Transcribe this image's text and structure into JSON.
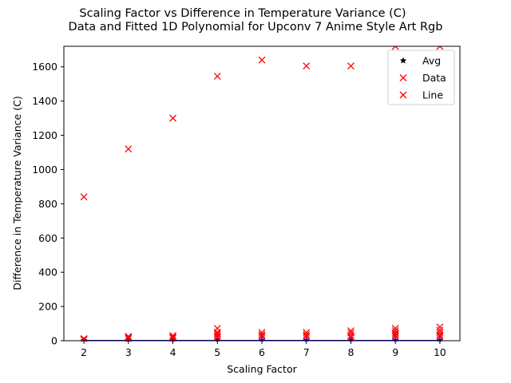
{
  "chart_data": {
    "type": "scatter",
    "title": "Scaling Factor vs Difference in Temperature Variance (C)",
    "subtitle": "Data and Fitted 1D Polynomial for Upconv 7 Anime Style Art Rgb",
    "xlabel": "Scaling Factor",
    "ylabel": "Difference in Temperature Variance (C)",
    "xlim": [
      1.55,
      10.45
    ],
    "ylim": [
      0,
      1720
    ],
    "x_ticks": [
      2,
      3,
      4,
      5,
      6,
      7,
      8,
      9,
      10
    ],
    "y_ticks": [
      0,
      200,
      400,
      600,
      800,
      1000,
      1200,
      1400,
      1600
    ],
    "grid": false,
    "legend_position": "top-right",
    "colors": {
      "data": "#ff0000",
      "avg": "#0000ff",
      "line": "#0000cc",
      "avg_legend": "#000000"
    },
    "legend": [
      {
        "label": "Avg",
        "marker": "star",
        "color": "#000000"
      },
      {
        "label": "Data",
        "marker": "x",
        "color": "#ff0000"
      },
      {
        "label": "Line",
        "marker": "x",
        "color": "#ff0000"
      }
    ],
    "series": [
      {
        "name": "Data",
        "marker": "x",
        "points": [
          [
            2,
            840
          ],
          [
            2,
            12
          ],
          [
            2,
            8
          ],
          [
            2,
            5
          ],
          [
            3,
            1120
          ],
          [
            3,
            25
          ],
          [
            3,
            18
          ],
          [
            3,
            12
          ],
          [
            4,
            1300
          ],
          [
            4,
            30
          ],
          [
            4,
            22
          ],
          [
            4,
            15
          ],
          [
            5,
            1545
          ],
          [
            5,
            72
          ],
          [
            5,
            50
          ],
          [
            5,
            40
          ],
          [
            5,
            30
          ],
          [
            5,
            20
          ],
          [
            6,
            1640
          ],
          [
            6,
            48
          ],
          [
            6,
            35
          ],
          [
            6,
            25
          ],
          [
            7,
            1605
          ],
          [
            7,
            48
          ],
          [
            7,
            35
          ],
          [
            7,
            25
          ],
          [
            8,
            1605
          ],
          [
            8,
            58
          ],
          [
            8,
            45
          ],
          [
            8,
            30
          ],
          [
            8,
            20
          ],
          [
            9,
            1720
          ],
          [
            9,
            72
          ],
          [
            9,
            58
          ],
          [
            9,
            45
          ],
          [
            9,
            35
          ],
          [
            9,
            25
          ],
          [
            10,
            1720
          ],
          [
            10,
            80
          ],
          [
            10,
            62
          ],
          [
            10,
            48
          ],
          [
            10,
            35
          ],
          [
            10,
            25
          ]
        ]
      },
      {
        "name": "Avg",
        "marker": "star",
        "points": [
          [
            2,
            2
          ],
          [
            3,
            2
          ],
          [
            4,
            2
          ],
          [
            5,
            2
          ],
          [
            6,
            2
          ],
          [
            7,
            2
          ],
          [
            8,
            2
          ],
          [
            9,
            2
          ],
          [
            10,
            2
          ]
        ]
      },
      {
        "name": "Line",
        "marker": "line",
        "points": [
          [
            2,
            1
          ],
          [
            10,
            1
          ]
        ]
      }
    ]
  }
}
